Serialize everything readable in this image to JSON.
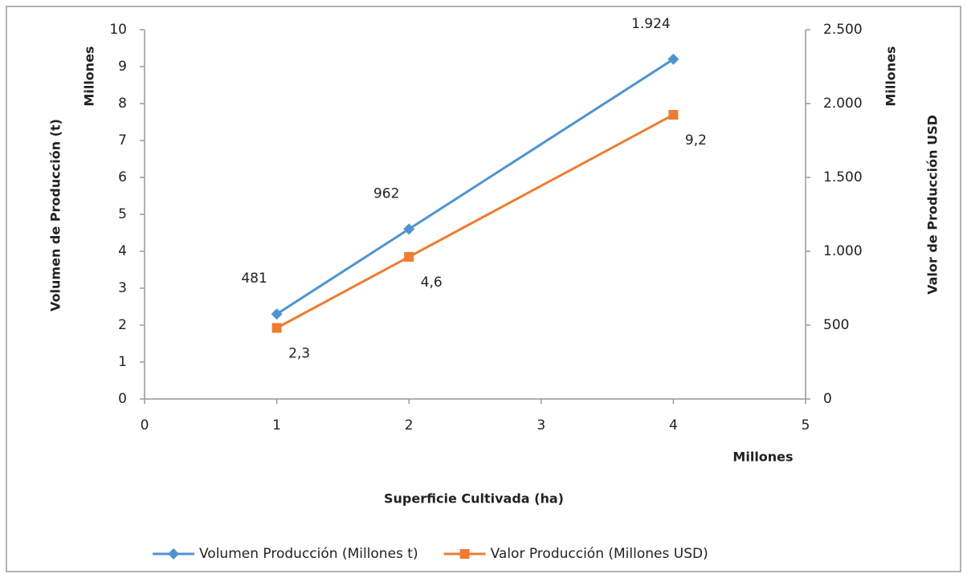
{
  "chart_data": {
    "type": "line",
    "y_unit_label": "Millones",
    "y2_unit_label": "Millones",
    "x_unit_label": "Millones",
    "ylabel": "Volumen de Producción (t)",
    "y2label": "Valor de Producción USD",
    "xlabel": "Superficie Cultivada (ha)",
    "x": [
      1,
      2,
      4
    ],
    "xlim": [
      0,
      5
    ],
    "xticks": [
      0,
      1,
      2,
      3,
      4,
      5
    ],
    "ylim": [
      0,
      10
    ],
    "yticks": [
      0,
      1,
      2,
      3,
      4,
      5,
      6,
      7,
      8,
      9,
      10
    ],
    "y2lim": [
      0,
      2500
    ],
    "y2ticks": [
      0,
      500,
      {
        "value": 1000,
        "label": "1.000"
      },
      {
        "value": 1500,
        "label": "1.500"
      },
      {
        "value": 2000,
        "label": "2.000"
      },
      {
        "value": 2500,
        "label": "2.500"
      }
    ],
    "legend": "bottom",
    "series": [
      {
        "name": "Volumen Producción (Millones t)",
        "color": "#4f94d0",
        "marker": "diamond",
        "values": [
          2.3,
          4.6,
          9.2
        ],
        "value_labels": [
          "2,3",
          "4,6",
          "9,2"
        ]
      },
      {
        "name": "Valor Producción (Millones USD)",
        "color": "#ed7d31",
        "marker": "square",
        "axis": "y2",
        "values": [
          481,
          962,
          1924
        ],
        "value_labels": [
          "481",
          "962",
          "1.924"
        ]
      }
    ]
  }
}
